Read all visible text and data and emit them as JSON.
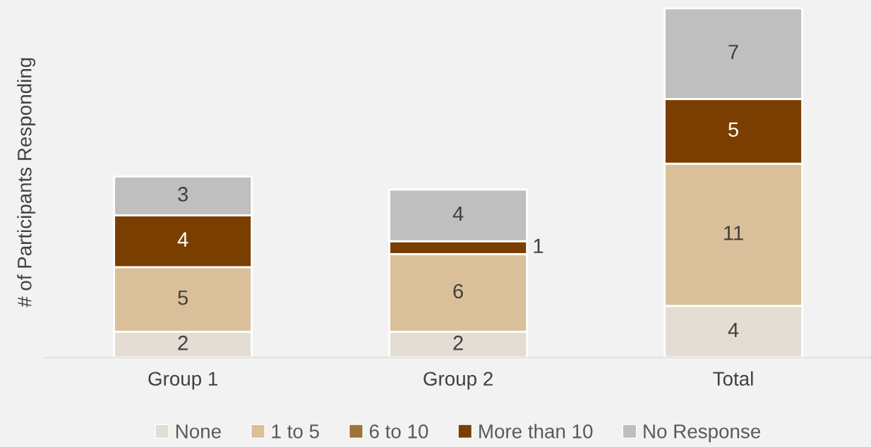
{
  "chart_data": {
    "type": "bar",
    "stacked": true,
    "ylabel": "# of Participants Responding",
    "categories": [
      "Group 1",
      "Group 2",
      "Total"
    ],
    "data_labels": true,
    "legend": "bottom",
    "grid": false,
    "tick_labels": "x",
    "series": [
      {
        "name": "None",
        "color": "#e3ddd3",
        "values": [
          2,
          2,
          4
        ]
      },
      {
        "name": "1 to 5",
        "color": "#dac09a",
        "values": [
          5,
          6,
          11
        ]
      },
      {
        "name": "6 to 10",
        "color": "#9c7339",
        "values": [
          null,
          null,
          null
        ]
      },
      {
        "name": "More than 10",
        "color": "#7a3f00",
        "values": [
          4,
          1,
          5
        ]
      },
      {
        "name": "No Response",
        "color": "#bfbfbf",
        "values": [
          3,
          4,
          7
        ]
      }
    ]
  }
}
